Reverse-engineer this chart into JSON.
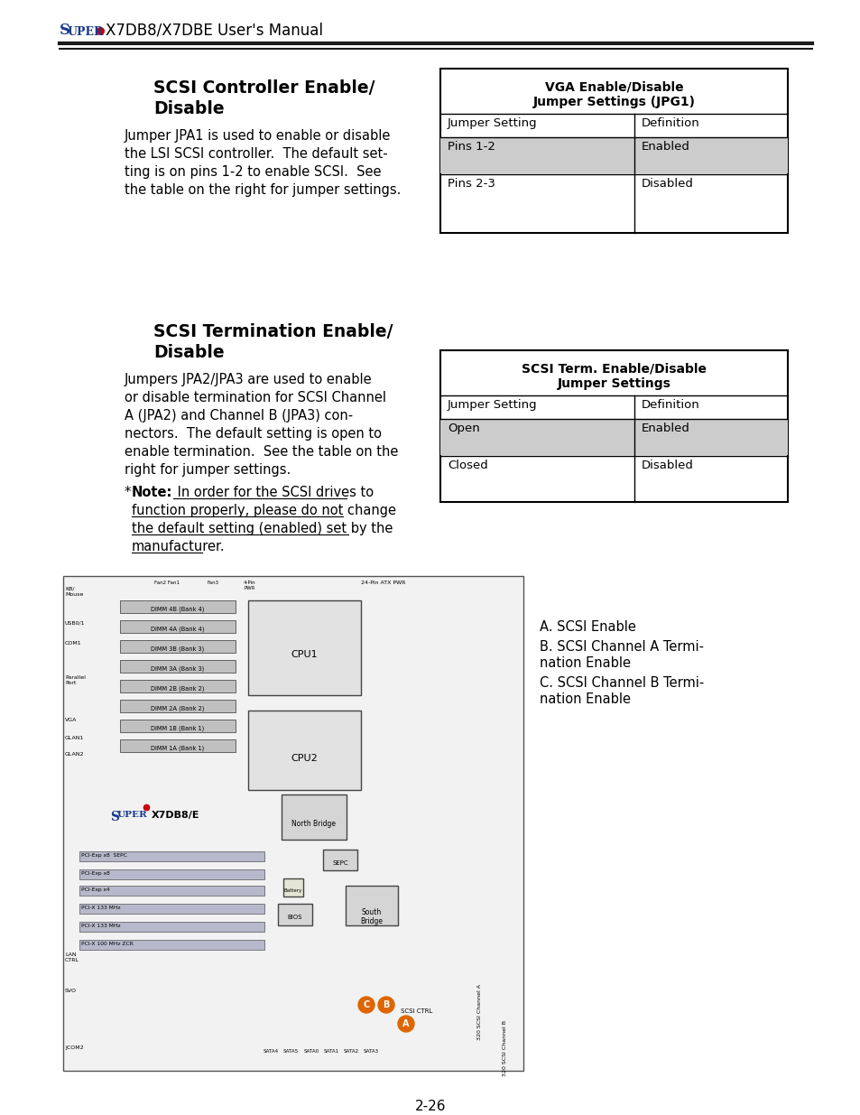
{
  "page_width": 9.54,
  "page_height": 12.35,
  "bg_color": "#ffffff",
  "header_text": "X7DB8/X7DBE User's Manual",
  "header_super_color": "#1a3a8c",
  "header_dot_color": "#cc0000",
  "header_line_color": "#1a1a1a",
  "table1_title1": "VGA Enable/Disable",
  "table1_title2": "Jumper Settings (JPG1)",
  "table1_col1": "Jumper Setting",
  "table1_col2": "Definition",
  "table1_row1": [
    "Pins 1-2",
    "Enabled"
  ],
  "table1_row2": [
    "Pins 2-3",
    "Disabled"
  ],
  "table1_row1_bg": "#cccccc",
  "table2_title1": "SCSI Term. Enable/Disable",
  "table2_title2": "Jumper Settings",
  "table2_col1": "Jumper Setting",
  "table2_col2": "Definition",
  "table2_row1": [
    "Open",
    "Enabled"
  ],
  "table2_row2": [
    "Closed",
    "Disabled"
  ],
  "table2_row1_bg": "#cccccc",
  "legend_a": "A. SCSI Enable",
  "legend_b1": "B. SCSI Channel A Termi-",
  "legend_b2": "nation Enable",
  "legend_c1": "C. SCSI Channel B Termi-",
  "legend_c2": "nation Enable",
  "page_number": "2-26",
  "dimm_labels": [
    "DIMM 4B (Bank 4)",
    "DIMM 4A (Bank 4)",
    "DIMM 3B (Bank 3)",
    "DIMM 3A (Bank 3)",
    "DIMM 2B (Bank 2)",
    "DIMM 2A (Bank 2)",
    "DIMM 1B (Bank 1)",
    "DIMM 1A (Bank 1)"
  ]
}
